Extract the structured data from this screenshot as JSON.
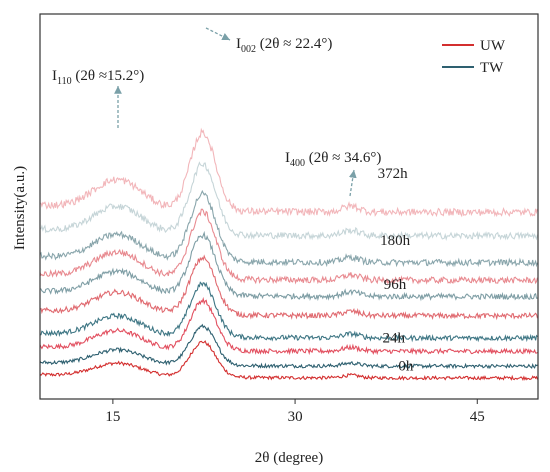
{
  "chart_data": {
    "type": "line",
    "xlabel": "2θ (degree)",
    "ylabel": "Intensity(a.u.)",
    "xlim": [
      9,
      50
    ],
    "xticks": [
      15,
      30,
      45
    ],
    "grid": false,
    "legend_position": "top-right",
    "legend": [
      {
        "name": "UW",
        "color": "#d32f2f"
      },
      {
        "name": "TW",
        "color": "#2e6070"
      }
    ],
    "peak_annotations": [
      {
        "main": "I",
        "sub": "110",
        "text": " (2θ ≈15.2°)",
        "x": 15.2
      },
      {
        "main": "I",
        "sub": "002",
        "text": " (2θ ≈ 22.4°)",
        "x": 22.4
      },
      {
        "main": "I",
        "sub": "400",
        "text": " (2θ ≈ 34.6°)",
        "x": 34.6
      }
    ],
    "curves": [
      {
        "label": "0h",
        "water": "UW",
        "color": "#d32f2f",
        "offset": 0.0,
        "scale": 1.0
      },
      {
        "label": "0h",
        "water": "TW",
        "color": "#2e6070",
        "offset": 0.08,
        "scale": 1.1
      },
      {
        "label": "24h",
        "water": "UW",
        "color": "#e25060",
        "offset": 0.18,
        "scale": 1.4
      },
      {
        "label": "24h",
        "water": "TW",
        "color": "#3e7684",
        "offset": 0.27,
        "scale": 1.5
      },
      {
        "label": "96h",
        "water": "UW",
        "color": "#e06a70",
        "offset": 0.42,
        "scale": 1.6
      },
      {
        "label": "96h",
        "water": "TW",
        "color": "#7f9ea5",
        "offset": 0.55,
        "scale": 1.7
      },
      {
        "label": "180h",
        "water": "UW",
        "color": "#e88a90",
        "offset": 0.66,
        "scale": 1.9
      },
      {
        "label": "180h",
        "water": "TW",
        "color": "#8aa6ac",
        "offset": 0.78,
        "scale": 1.9
      },
      {
        "label": "372h",
        "water": "UW",
        "color": "#c6d5d8",
        "offset": 0.96,
        "scale": 2.0
      },
      {
        "label": "372h",
        "water": "TW",
        "color": "#f2b6ba",
        "offset": 1.12,
        "scale": 2.2
      }
    ],
    "time_labels": [
      {
        "text": "372h",
        "x": 36.8,
        "level": 1.35
      },
      {
        "text": "180h",
        "x": 37.0,
        "level": 0.9
      },
      {
        "text": "96h",
        "x": 37.3,
        "level": 0.6
      },
      {
        "text": "24h",
        "x": 37.2,
        "level": 0.24
      },
      {
        "text": "0h",
        "x": 38.5,
        "level": 0.05
      }
    ]
  }
}
